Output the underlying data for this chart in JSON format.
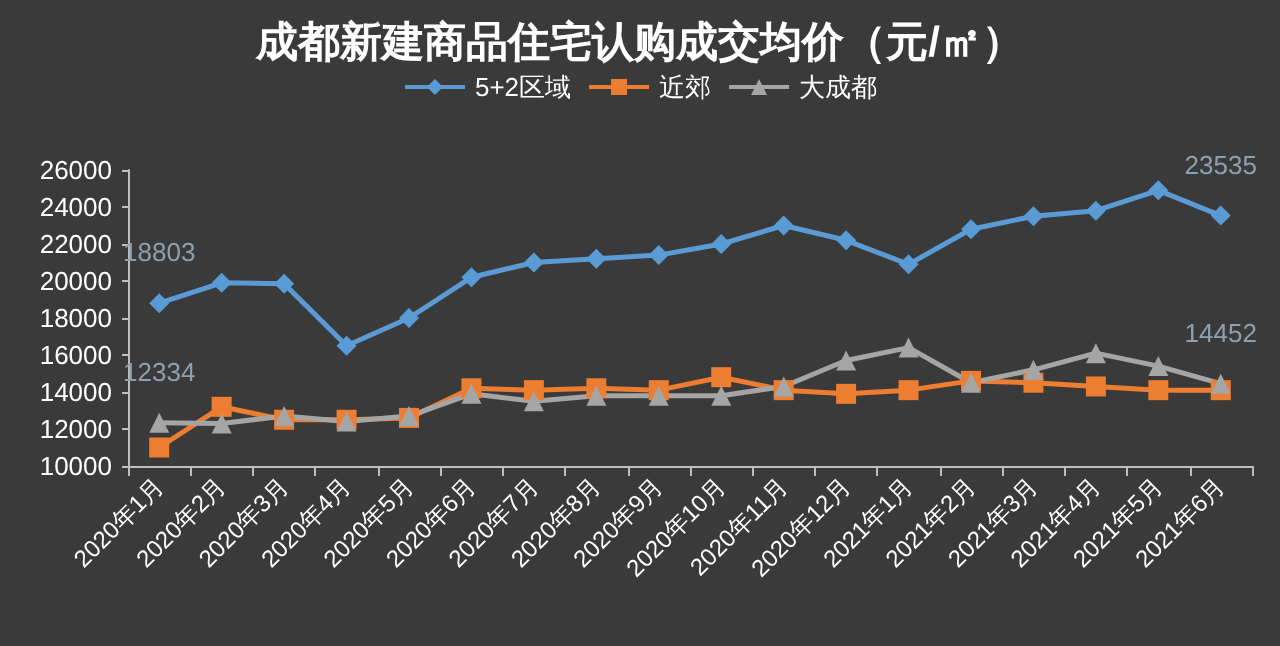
{
  "chart_data": {
    "type": "line",
    "title": "成都新建商品住宅认购成交均价（元/㎡）",
    "categories": [
      "2020年1月",
      "2020年2月",
      "2020年3月",
      "2020年4月",
      "2020年5月",
      "2020年6月",
      "2020年7月",
      "2020年8月",
      "2020年9月",
      "2020年10月",
      "2020年11月",
      "2020年12月",
      "2021年1月",
      "2021年2月",
      "2021年3月",
      "2021年4月",
      "2021年5月",
      "2021年6月"
    ],
    "series": [
      {
        "name": "5+2区域",
        "color": "#5b9bd5",
        "marker": "diamond",
        "values": [
          18803,
          19900,
          19850,
          16500,
          18000,
          20200,
          21000,
          21200,
          21400,
          22000,
          23000,
          22200,
          20900,
          22800,
          23500,
          23800,
          24900,
          23535
        ],
        "value_labels": [
          "18803",
          null,
          null,
          null,
          null,
          null,
          null,
          null,
          null,
          null,
          null,
          null,
          null,
          null,
          null,
          null,
          null,
          "23535"
        ]
      },
      {
        "name": "近郊",
        "color": "#ed7d31",
        "marker": "square",
        "values": [
          11000,
          13200,
          12500,
          12500,
          12600,
          14200,
          14100,
          14200,
          14100,
          14800,
          14100,
          13900,
          14100,
          14600,
          14500,
          14300,
          14100,
          14100
        ]
      },
      {
        "name": "大成都",
        "color": "#a5a5a5",
        "marker": "triangle",
        "values": [
          12334,
          12300,
          12700,
          12400,
          12700,
          13900,
          13500,
          13800,
          13800,
          13800,
          14300,
          15700,
          16400,
          14500,
          15200,
          16100,
          15400,
          14452
        ],
        "value_labels": [
          "12334",
          null,
          null,
          null,
          null,
          null,
          null,
          null,
          null,
          null,
          null,
          null,
          null,
          null,
          null,
          null,
          null,
          "14452"
        ]
      }
    ],
    "ylim": [
      10000,
      26000
    ],
    "yticks": [
      10000,
      12000,
      14000,
      16000,
      18000,
      20000,
      22000,
      24000,
      26000
    ],
    "grid": false,
    "legend": "top"
  }
}
